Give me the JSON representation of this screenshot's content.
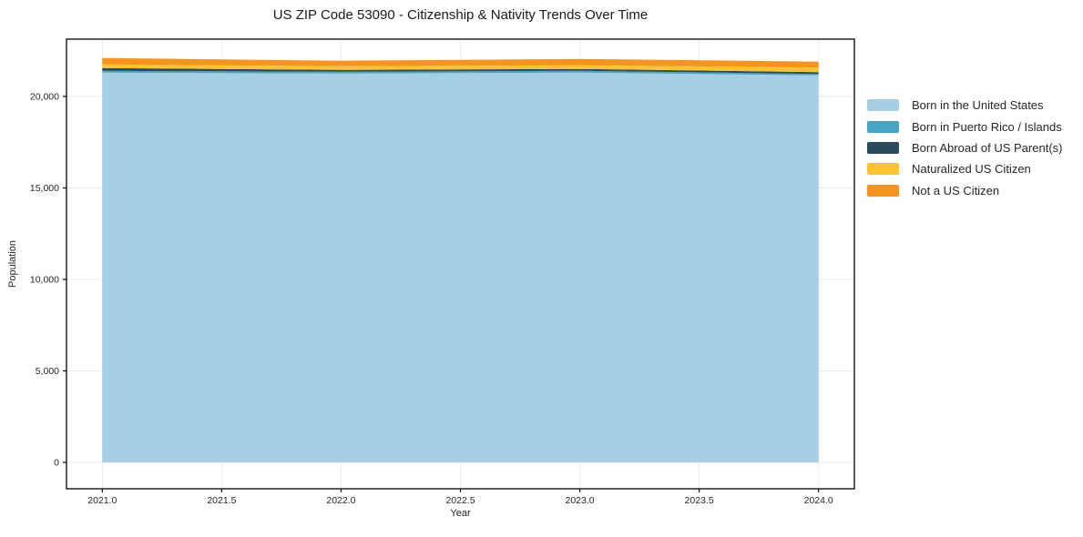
{
  "chart": {
    "title": "US ZIP Code 53090 - Citizenship & Nativity Trends Over Time",
    "xlabel": "Year",
    "ylabel": "Population"
  },
  "chart_data": {
    "type": "area",
    "stacked": true,
    "title": "US ZIP Code 53090 - Citizenship & Nativity Trends Over Time",
    "xlabel": "Year",
    "ylabel": "Population",
    "x": [
      2021,
      2022,
      2023,
      2024
    ],
    "series": [
      {
        "name": "Born in the United States",
        "color": "#a5cfe4",
        "values": [
          21300,
          21250,
          21300,
          21150
        ]
      },
      {
        "name": "Born in Puerto Rico / Islands",
        "color": "#45a5c2",
        "values": [
          100,
          100,
          100,
          80
        ]
      },
      {
        "name": "Born Abroad of US Parent(s)",
        "color": "#2a4a5e",
        "values": [
          150,
          100,
          100,
          100
        ]
      },
      {
        "name": "Naturalized US Citizen",
        "color": "#fcc32d",
        "values": [
          200,
          200,
          200,
          250
        ]
      },
      {
        "name": "Not a US Citizen",
        "color": "#f6941e",
        "values": [
          350,
          300,
          350,
          320
        ]
      }
    ],
    "xlim": [
      2020.85,
      2024.15
    ],
    "ylim": [
      -1440,
      23130
    ],
    "xtick_values": [
      2021.0,
      2021.5,
      2022.0,
      2022.5,
      2023.0,
      2023.5,
      2024.0
    ],
    "xtick_labels": [
      "2021.0",
      "2021.5",
      "2022.0",
      "2022.5",
      "2023.0",
      "2023.5",
      "2024.0"
    ],
    "ytick_values": [
      0,
      5000,
      10000,
      15000,
      20000
    ],
    "ytick_labels": [
      "0",
      "5,000",
      "10,000",
      "15,000",
      "20,000"
    ],
    "grid": true,
    "legend_position": "right",
    "colors": {
      "frame": "#000000",
      "gridline": "#ececec",
      "tick_label": "#262626",
      "background": "#ffffff"
    }
  }
}
